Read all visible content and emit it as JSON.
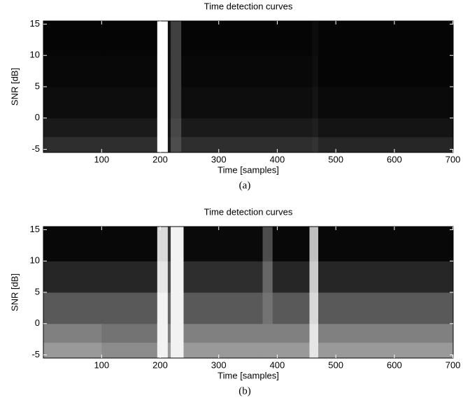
{
  "chart_data": [
    {
      "type": "heatmap",
      "title": "Time detection curves",
      "xlabel": "Time [samples]",
      "ylabel": "SNR [dB]",
      "caption": "(a)",
      "colormap": "gray",
      "xlim": [
        0.5,
        700.5
      ],
      "ylim": [
        -5.5,
        15.5
      ],
      "xticks": [
        100,
        200,
        300,
        400,
        500,
        600,
        700
      ],
      "yticks": [
        -5,
        0,
        5,
        10,
        15
      ],
      "x_bins": [
        0.5,
        100,
        195,
        213,
        218,
        236,
        460,
        470,
        700.5
      ],
      "y_bins": [
        -5.5,
        -3,
        0,
        5,
        10,
        15.5
      ],
      "values": [
        [
          0.18,
          0.1,
          0.05,
          0.03,
          0.02
        ],
        [
          0.18,
          0.1,
          0.05,
          0.03,
          0.02
        ],
        [
          1,
          1,
          1,
          1,
          1
        ],
        [
          0.1,
          0.08,
          0.06,
          0.06,
          0.06
        ],
        [
          0.3,
          0.28,
          0.25,
          0.25,
          0.25
        ],
        [
          0.18,
          0.1,
          0.05,
          0.03,
          0.02
        ],
        [
          0.2,
          0.12,
          0.08,
          0.06,
          0.05
        ],
        [
          0.15,
          0.08,
          0.04,
          0.02,
          0.02
        ]
      ]
    },
    {
      "type": "heatmap",
      "title": "Time detection curves",
      "xlabel": "Time [samples]",
      "ylabel": "SNR [dB]",
      "caption": "(b)",
      "colormap": "gray",
      "xlim": [
        0.5,
        700.5
      ],
      "ylim": [
        -5.5,
        15.5
      ],
      "xticks": [
        100,
        200,
        300,
        400,
        500,
        600,
        700
      ],
      "yticks": [
        -5,
        0,
        5,
        10,
        15
      ],
      "x_bins": [
        0.5,
        100,
        195,
        213,
        218,
        240,
        375,
        392,
        455,
        470,
        700.5
      ],
      "y_bins": [
        -5.5,
        -3,
        0,
        5,
        10,
        15.5
      ],
      "values": [
        [
          0.6,
          0.5,
          0.35,
          0.15,
          0.03
        ],
        [
          0.55,
          0.45,
          0.35,
          0.15,
          0.03
        ],
        [
          0.95,
          0.95,
          0.95,
          0.9,
          0.85
        ],
        [
          0.6,
          0.5,
          0.4,
          0.3,
          0.2
        ],
        [
          0.95,
          0.95,
          0.95,
          0.95,
          0.95
        ],
        [
          0.6,
          0.5,
          0.35,
          0.18,
          0.04
        ],
        [
          0.6,
          0.5,
          0.45,
          0.4,
          0.3
        ],
        [
          0.6,
          0.5,
          0.35,
          0.15,
          0.03
        ],
        [
          0.9,
          0.9,
          0.85,
          0.8,
          0.75
        ],
        [
          0.6,
          0.5,
          0.35,
          0.15,
          0.03
        ]
      ]
    }
  ]
}
